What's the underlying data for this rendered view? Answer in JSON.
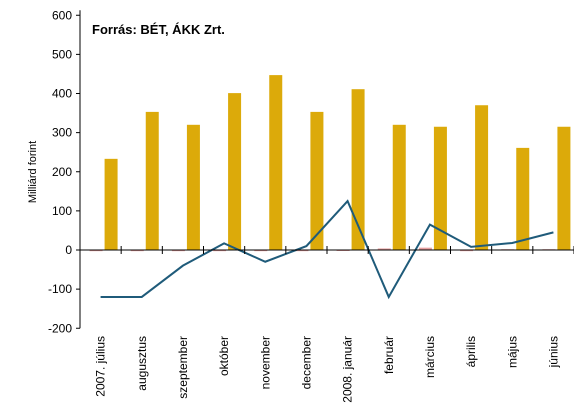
{
  "chart_data": {
    "type": "bar",
    "annotation": "Forrás:  BÉT, ÁKK Zrt.",
    "y_label": "Milliárd forint",
    "categories": [
      "2007. július",
      "augusztus",
      "szeptember",
      "október",
      "november",
      "december",
      "2008. január",
      "február",
      "március",
      "április",
      "május",
      "június"
    ],
    "series": [
      {
        "color": "#e8a0a0",
        "values": [
          -3,
          -3,
          -3,
          -3,
          -3,
          -3,
          -2,
          4,
          6,
          -3,
          2,
          2
        ]
      },
      {
        "color": "#dcaa0a",
        "values": [
          233,
          353,
          320,
          401,
          447,
          353,
          411,
          320,
          315,
          370,
          261,
          315
        ]
      },
      {
        "type": "line",
        "color": "#1f5b7a",
        "values": [
          -120,
          -120,
          -40,
          17,
          -30,
          10,
          125,
          -120,
          65,
          8,
          18,
          45
        ]
      }
    ],
    "ylim": [
      -200,
      600
    ],
    "yticks": [
      -200,
      -100,
      0,
      100,
      200,
      300,
      400,
      500,
      600
    ]
  }
}
